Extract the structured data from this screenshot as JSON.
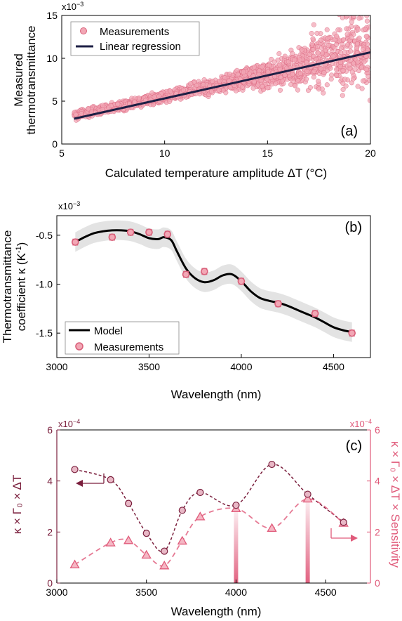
{
  "panels": {
    "a": {
      "label": "(a)",
      "xlabel": "Calculated temperature amplitude ΔT (°C)",
      "ylabel1": "Measured",
      "ylabel2": "thermotransmittance",
      "scale": "x10",
      "scale_exp": "−3"
    },
    "b": {
      "label": "(b)",
      "xlabel": "Wavelength (nm)",
      "ylabel1": "Thermotransmittance",
      "ylabel2": "coefficient κ (K",
      "ylabel2_sup": "-1",
      "ylabel2_end": ")",
      "scale": "x10",
      "scale_exp": "−3"
    },
    "c": {
      "label": "(c)",
      "xlabel": "Wavelength (nm)",
      "ylabel_left": "κ × Γ₀ × ΔT",
      "ylabel_right": "κ × Γ₀ × ΔT × Sensitivity",
      "scale": "x10",
      "scale_exp": "−4"
    }
  },
  "colors": {
    "meas_fill": "#f2a7b5",
    "meas_stroke": "#d9607a",
    "regression": "#1d1f45",
    "model": "#000000",
    "band": "#e3e3e3",
    "dark": "#7a1e3c",
    "light": "#e05a7a"
  },
  "chart_data": [
    {
      "type": "scatter",
      "xlim": [
        5,
        20
      ],
      "ylim": [
        0,
        15
      ],
      "xticks": [
        "5",
        "10",
        "15",
        "20"
      ],
      "yticks": [
        "0",
        "5",
        "10",
        "15"
      ],
      "legend": [
        "Measurements",
        "Linear regression"
      ],
      "legend_position": "top-left",
      "scatter_trend": {
        "x_range": [
          5.6,
          20
        ],
        "center": "y = 0.5 + 0.51x",
        "spread_at_low_x": 0.4,
        "spread_at_high_x": 3.5
      },
      "regression_line": {
        "x": [
          5.6,
          20
        ],
        "y": [
          2.95,
          10.7
        ]
      }
    },
    {
      "type": "line",
      "xlim": [
        3000,
        4700
      ],
      "ylim": [
        -1.75,
        -0.3
      ],
      "xticks": [
        "3000",
        "3500",
        "4000",
        "4500"
      ],
      "yticks": [
        "-0.5",
        "-1.0",
        "-1.5"
      ],
      "legend": [
        "Model",
        "Measurements"
      ],
      "legend_position": "bottom-left",
      "measurements": {
        "x": [
          3100,
          3300,
          3400,
          3500,
          3600,
          3700,
          3800,
          4000,
          4200,
          4400,
          4600
        ],
        "y": [
          -0.57,
          -0.52,
          -0.47,
          -0.47,
          -0.49,
          -0.9,
          -0.87,
          -0.97,
          -1.2,
          -1.3,
          -1.5
        ],
        "err": 0.03
      },
      "model": {
        "x": [
          3100,
          3150,
          3200,
          3250,
          3300,
          3350,
          3400,
          3450,
          3500,
          3550,
          3580,
          3620,
          3650,
          3700,
          3750,
          3800,
          3850,
          3900,
          3950,
          4000,
          4050,
          4100,
          4150,
          4200,
          4250,
          4300,
          4350,
          4400,
          4450,
          4500,
          4550,
          4600
        ],
        "y": [
          -0.57,
          -0.52,
          -0.48,
          -0.46,
          -0.45,
          -0.45,
          -0.46,
          -0.49,
          -0.53,
          -0.54,
          -0.52,
          -0.55,
          -0.66,
          -0.84,
          -0.94,
          -0.98,
          -0.96,
          -0.91,
          -0.9,
          -0.97,
          -1.07,
          -1.14,
          -1.17,
          -1.19,
          -1.22,
          -1.26,
          -1.3,
          -1.34,
          -1.39,
          -1.44,
          -1.47,
          -1.49
        ]
      },
      "band_halfwidth": 0.1
    },
    {
      "type": "line",
      "xlim": [
        3000,
        4750
      ],
      "ylim": [
        0,
        6
      ],
      "xticks": [
        "3000",
        "3500",
        "4000",
        "4500"
      ],
      "yticks_left": [
        "0",
        "2",
        "4",
        "6"
      ],
      "yticks_right": [
        "0",
        "2",
        "4",
        "6"
      ],
      "series": [
        {
          "axis": "left",
          "marker": "circle",
          "x": [
            3100,
            3300,
            3400,
            3500,
            3600,
            3700,
            3800,
            4000,
            4200,
            4400,
            4600
          ],
          "y": [
            4.45,
            4.05,
            3.12,
            1.95,
            1.25,
            2.85,
            3.55,
            3.05,
            4.65,
            3.48,
            2.38
          ]
        },
        {
          "axis": "right",
          "marker": "triangle",
          "x": [
            3100,
            3300,
            3400,
            3500,
            3600,
            3700,
            3800,
            4000,
            4200,
            4400,
            4600
          ],
          "y": [
            0.72,
            1.58,
            1.67,
            1.1,
            0.68,
            1.65,
            2.6,
            2.92,
            2.15,
            3.3,
            2.35
          ]
        }
      ],
      "highlights": [
        4000,
        4400
      ]
    }
  ]
}
